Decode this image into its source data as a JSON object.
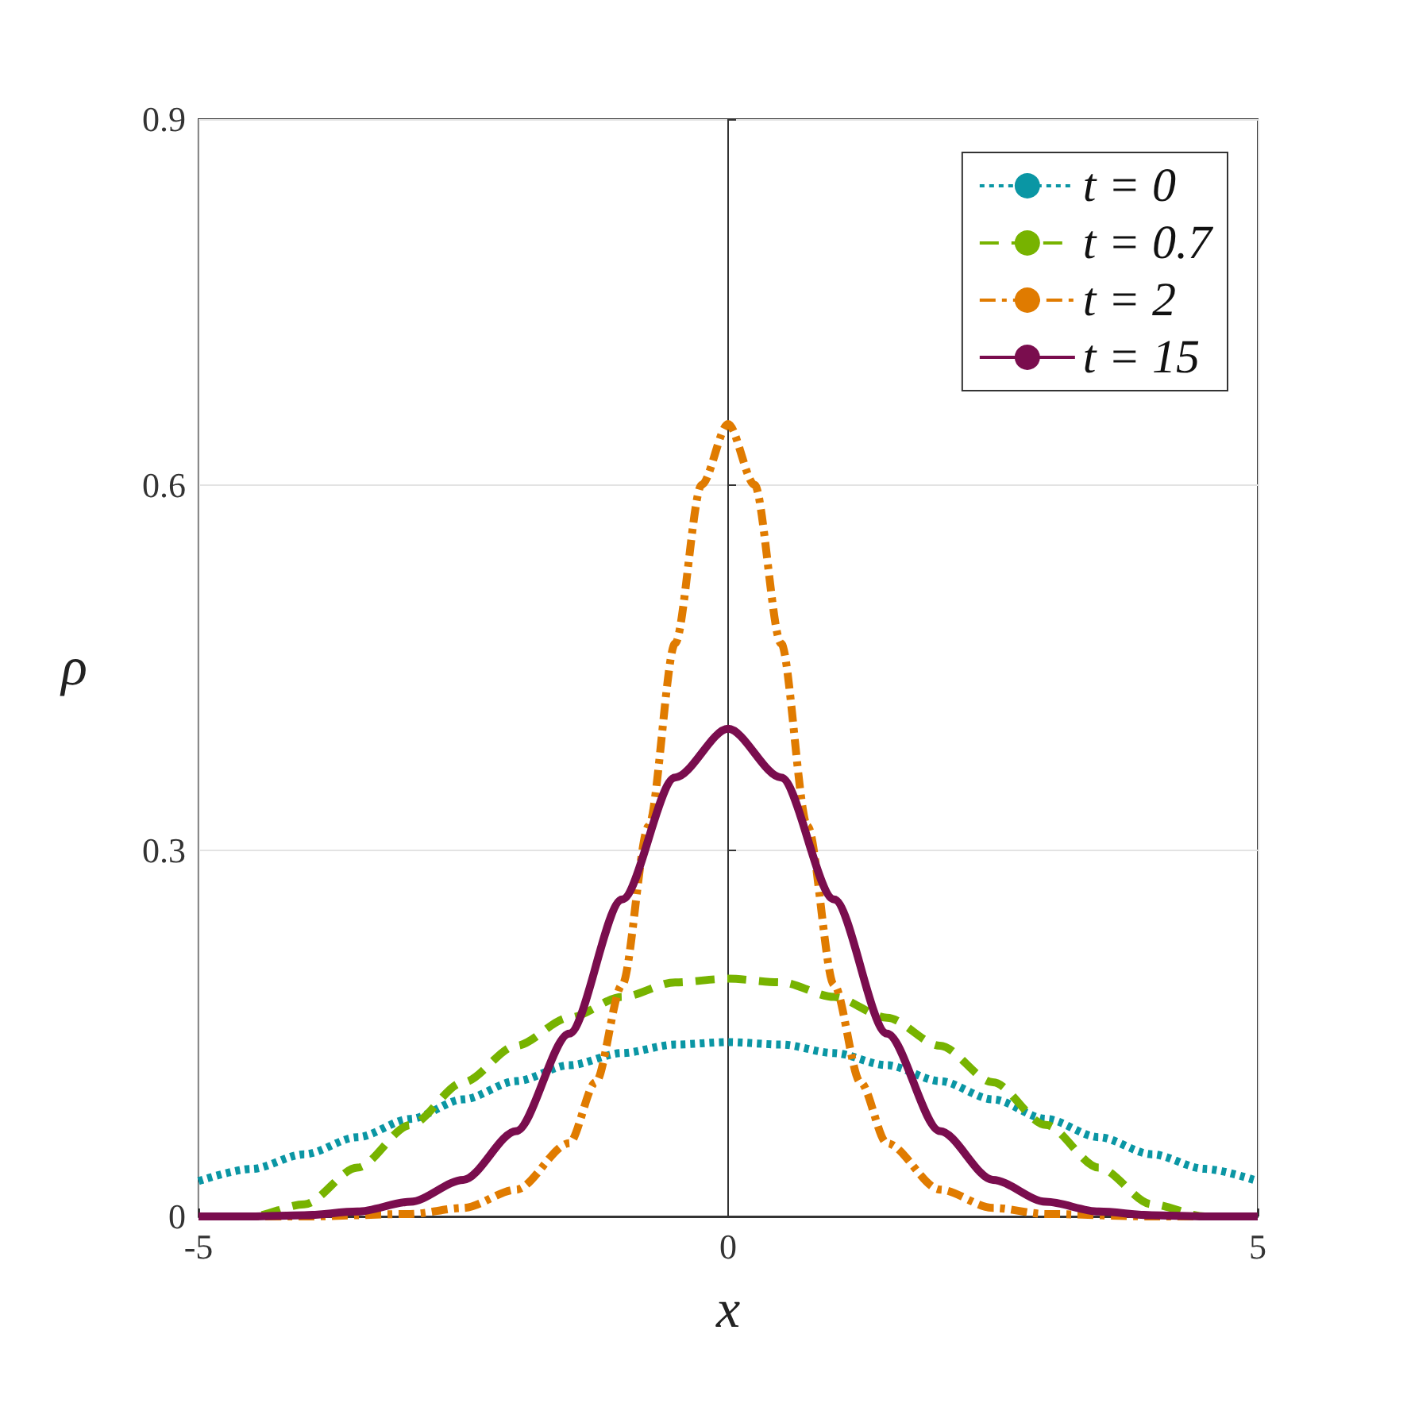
{
  "chart_data": {
    "type": "line",
    "xlabel": "x",
    "ylabel": "ρ",
    "xlim": [
      -5,
      5
    ],
    "xticks": [
      -5,
      0,
      5
    ],
    "ylim": [
      0,
      0.9
    ],
    "yticks": [
      0,
      0.3,
      0.6,
      0.9
    ],
    "grid": true,
    "legend": "top right",
    "series": [
      {
        "name": "t = 0",
        "color": "#0a96a4",
        "line_style": "dotted",
        "x": [
          -5,
          -4.5,
          -4,
          -3.5,
          -3,
          -2.5,
          -2,
          -1.5,
          -1,
          -0.5,
          0,
          0.5,
          1,
          1.5,
          2,
          2.5,
          3,
          3.5,
          4,
          4.5,
          5
        ],
        "values": [
          0.029,
          0.039,
          0.051,
          0.065,
          0.08,
          0.096,
          0.111,
          0.124,
          0.134,
          0.141,
          0.143,
          0.141,
          0.134,
          0.124,
          0.111,
          0.096,
          0.08,
          0.065,
          0.051,
          0.039,
          0.029
        ]
      },
      {
        "name": "t = 0.7",
        "color": "#77b300",
        "line_style": "dashed",
        "x": [
          -5,
          -4.5,
          -4,
          -3.5,
          -3,
          -2.5,
          -2,
          -1.5,
          -1,
          -0.5,
          0,
          0.5,
          1,
          1.5,
          2,
          2.5,
          3,
          3.5,
          4,
          4.5,
          5
        ],
        "values": [
          0,
          0,
          0.01,
          0.04,
          0.075,
          0.11,
          0.14,
          0.163,
          0.18,
          0.192,
          0.195,
          0.192,
          0.18,
          0.163,
          0.14,
          0.11,
          0.075,
          0.04,
          0.01,
          0,
          0
        ]
      },
      {
        "name": "t = 2",
        "color": "#e07b00",
        "line_style": "dashdot",
        "x": [
          -5,
          -4,
          -3,
          -2.5,
          -2,
          -1.5,
          -1.25,
          -1,
          -0.75,
          -0.5,
          -0.25,
          0,
          0.25,
          0.5,
          0.75,
          1,
          1.25,
          1.5,
          2,
          2.5,
          3,
          4,
          5
        ],
        "values": [
          0,
          0,
          0.002,
          0.007,
          0.022,
          0.06,
          0.11,
          0.19,
          0.32,
          0.47,
          0.6,
          0.65,
          0.6,
          0.47,
          0.32,
          0.19,
          0.11,
          0.06,
          0.022,
          0.007,
          0.002,
          0,
          0
        ]
      },
      {
        "name": "t = 15",
        "color": "#7a0d4e",
        "line_style": "solid",
        "x": [
          -5,
          -4.5,
          -4,
          -3.5,
          -3,
          -2.5,
          -2,
          -1.5,
          -1,
          -0.5,
          0,
          0.5,
          1,
          1.5,
          2,
          2.5,
          3,
          3.5,
          4,
          4.5,
          5
        ],
        "values": [
          0,
          0,
          0.001,
          0.004,
          0.012,
          0.03,
          0.07,
          0.15,
          0.26,
          0.36,
          0.4,
          0.36,
          0.26,
          0.15,
          0.07,
          0.03,
          0.012,
          0.004,
          0.001,
          0,
          0
        ]
      }
    ]
  }
}
